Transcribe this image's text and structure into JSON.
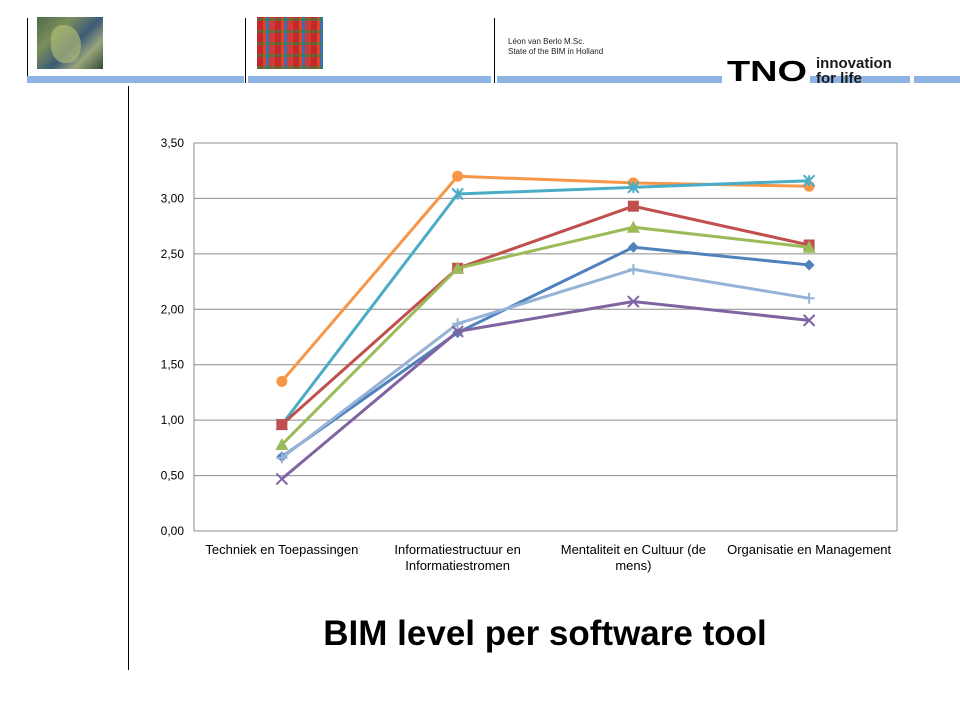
{
  "header": {
    "author": "Léon van Berlo M.Sc.",
    "subtitle": "State of the BIM in Holland"
  },
  "logo": {
    "brand": "TNO",
    "tagline_line1": "innovation",
    "tagline_line2": "for life",
    "colors": {
      "brand": "#000000",
      "bar": "#8eb4e3"
    }
  },
  "thumbnails": [
    {
      "name": "satellite-map-image"
    },
    {
      "name": "industrial-installation-image"
    }
  ],
  "slide": {
    "title": "BIM level per software tool"
  },
  "chart_data": {
    "type": "line",
    "title": "",
    "xlabel": "",
    "ylabel": "",
    "ylim": [
      0,
      3.5
    ],
    "yticks": [
      "0,00",
      "0,50",
      "1,00",
      "1,50",
      "2,00",
      "2,50",
      "3,00",
      "3,50"
    ],
    "grid": true,
    "legend": "none",
    "categories": [
      [
        "Techniek en Toepassingen"
      ],
      [
        "Informatiestructuur en",
        "Informatiestromen"
      ],
      [
        "Mentaliteit en Cultuur (de",
        "mens)"
      ],
      [
        "Organisatie en Management"
      ]
    ],
    "series": [
      {
        "color": "#f79646",
        "marker": "circle",
        "values": [
          1.35,
          3.2,
          3.14,
          3.11
        ]
      },
      {
        "color": "#4bacc6",
        "marker": "star",
        "values": [
          0.96,
          3.04,
          3.1,
          3.16
        ]
      },
      {
        "color": "#c0504d",
        "marker": "square",
        "values": [
          0.96,
          2.37,
          2.93,
          2.58
        ]
      },
      {
        "color": "#9bbb59",
        "marker": "triangle",
        "values": [
          0.78,
          2.37,
          2.74,
          2.56
        ]
      },
      {
        "color": "#4f81bd",
        "marker": "diamond",
        "values": [
          0.67,
          1.79,
          2.56,
          2.4
        ]
      },
      {
        "color": "#95b3d7",
        "marker": "plus",
        "values": [
          0.66,
          1.87,
          2.36,
          2.1
        ]
      },
      {
        "color": "#8064a2",
        "marker": "x",
        "values": [
          0.47,
          1.8,
          2.07,
          1.9
        ]
      }
    ]
  }
}
